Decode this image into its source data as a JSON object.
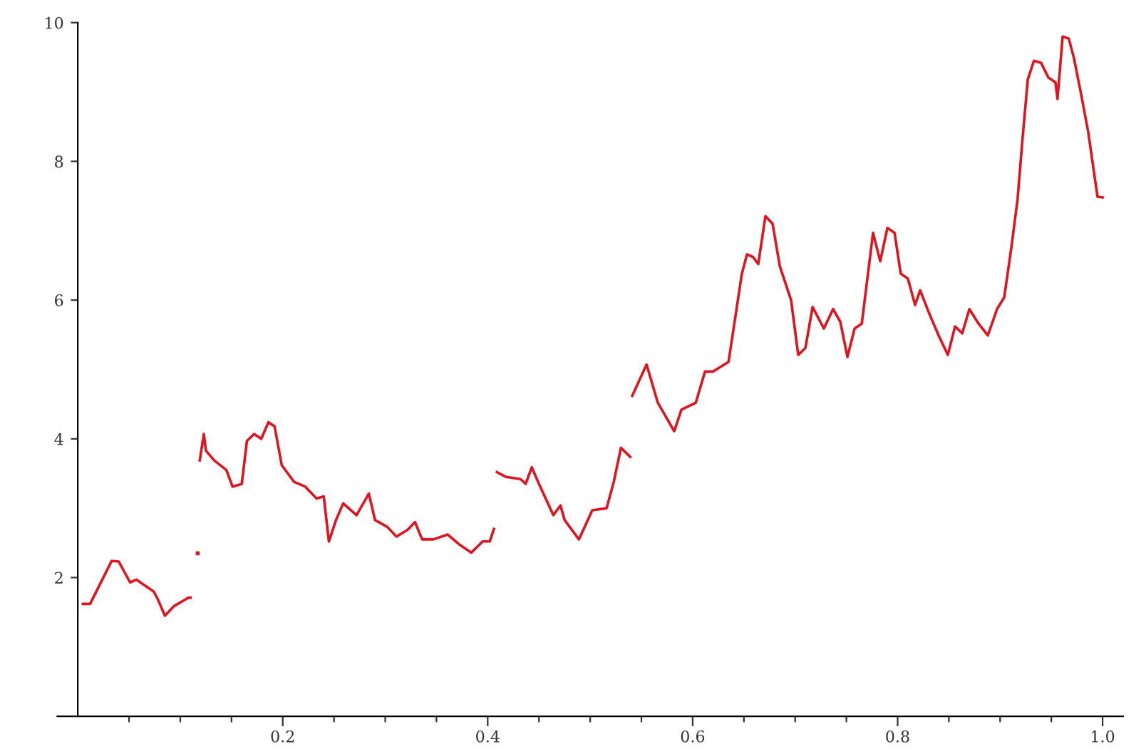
{
  "chart_data": {
    "type": "line",
    "xlim": [
      -0.02,
      1.02
    ],
    "ylim": [
      0,
      10
    ],
    "xticks": [
      {
        "value": 0.05,
        "label": null
      },
      {
        "value": 0.1,
        "label": null
      },
      {
        "value": 0.15,
        "label": null
      },
      0.2,
      {
        "value": 0.25,
        "label": null
      },
      {
        "value": 0.3,
        "label": null
      },
      {
        "value": 0.35,
        "label": null
      },
      0.4,
      {
        "value": 0.45,
        "label": null
      },
      {
        "value": 0.5,
        "label": null
      },
      {
        "value": 0.55,
        "label": null
      },
      0.6,
      {
        "value": 0.65,
        "label": null
      },
      {
        "value": 0.7,
        "label": null
      },
      {
        "value": 0.75,
        "label": null
      },
      0.8,
      {
        "value": 0.85,
        "label": null
      },
      {
        "value": 0.9,
        "label": null
      },
      {
        "value": 0.95,
        "label": null
      },
      {
        "value": 1.0,
        "label": "1.0"
      }
    ],
    "yticks": [
      2,
      4,
      6,
      8,
      10
    ],
    "grid": false,
    "marker": "none",
    "line_style": "solid",
    "series": [
      {
        "color": "#e0141e",
        "x": [
          0.005,
          0.012,
          0.033,
          0.04,
          0.051,
          0.057,
          0.074,
          0.078,
          0.085,
          0.094,
          0.108,
          0.11
        ],
        "values": [
          1.62,
          1.62,
          2.24,
          2.23,
          1.93,
          1.97,
          1.8,
          1.69,
          1.45,
          1.59,
          1.71,
          1.71
        ]
      },
      {
        "type": "scatter",
        "marker": "square",
        "color": "#e0141e",
        "x": [
          0.117
        ],
        "values": [
          2.35
        ]
      },
      {
        "color": "#e0141e",
        "x": [
          0.119,
          0.123,
          0.125,
          0.133,
          0.145,
          0.151,
          0.16,
          0.165,
          0.172,
          0.179,
          0.186,
          0.192,
          0.199,
          0.211,
          0.222,
          0.233,
          0.24,
          0.245,
          0.252,
          0.259,
          0.272,
          0.284,
          0.29,
          0.302,
          0.311,
          0.322,
          0.329,
          0.336,
          0.347,
          0.361,
          0.372,
          0.384,
          0.395,
          0.402,
          0.406
        ],
        "values": [
          3.69,
          4.07,
          3.83,
          3.69,
          3.55,
          3.31,
          3.35,
          3.97,
          4.07,
          4.0,
          4.24,
          4.18,
          3.62,
          3.38,
          3.31,
          3.14,
          3.17,
          2.52,
          2.83,
          3.07,
          2.9,
          3.21,
          2.83,
          2.73,
          2.59,
          2.69,
          2.8,
          2.55,
          2.55,
          2.62,
          2.48,
          2.36,
          2.52,
          2.52,
          2.7
        ]
      },
      {
        "color": "#e0141e",
        "x": [
          0.409,
          0.418,
          0.432,
          0.437,
          0.443,
          0.45,
          0.464,
          0.471,
          0.475,
          0.489,
          0.502,
          0.516,
          0.523,
          0.53,
          0.539
        ],
        "values": [
          3.52,
          3.45,
          3.42,
          3.35,
          3.59,
          3.35,
          2.9,
          3.04,
          2.83,
          2.55,
          2.97,
          3.0,
          3.38,
          3.87,
          3.74
        ]
      },
      {
        "color": "#e0141e",
        "x": [
          0.541,
          0.555,
          0.566,
          0.582,
          0.589,
          0.603,
          0.612,
          0.62,
          0.635,
          0.648,
          0.653,
          0.659,
          0.664,
          0.671,
          0.678,
          0.685,
          0.696,
          0.703,
          0.71,
          0.717,
          0.728,
          0.737,
          0.744,
          0.751,
          0.758,
          0.765,
          0.776,
          0.783,
          0.79,
          0.797,
          0.803,
          0.81,
          0.817,
          0.822,
          0.831,
          0.84,
          0.849,
          0.856,
          0.863,
          0.87,
          0.879,
          0.888,
          0.897,
          0.904,
          0.911,
          0.917,
          0.922,
          0.927,
          0.933,
          0.94,
          0.947,
          0.954,
          0.956,
          0.961,
          0.967,
          0.972,
          0.979,
          0.986,
          0.995,
          1.0
        ],
        "values": [
          4.62,
          5.07,
          4.52,
          4.11,
          4.42,
          4.52,
          4.97,
          4.97,
          5.11,
          6.38,
          6.66,
          6.62,
          6.52,
          7.21,
          7.1,
          6.49,
          6.0,
          5.21,
          5.31,
          5.9,
          5.59,
          5.87,
          5.69,
          5.18,
          5.59,
          5.66,
          6.97,
          6.56,
          7.04,
          6.97,
          6.38,
          6.31,
          5.93,
          6.14,
          5.8,
          5.49,
          5.21,
          5.62,
          5.52,
          5.87,
          5.66,
          5.49,
          5.87,
          6.04,
          6.76,
          7.45,
          8.35,
          9.18,
          9.45,
          9.42,
          9.21,
          9.14,
          8.9,
          9.8,
          9.77,
          9.49,
          8.97,
          8.42,
          7.49,
          7.48
        ]
      }
    ]
  }
}
